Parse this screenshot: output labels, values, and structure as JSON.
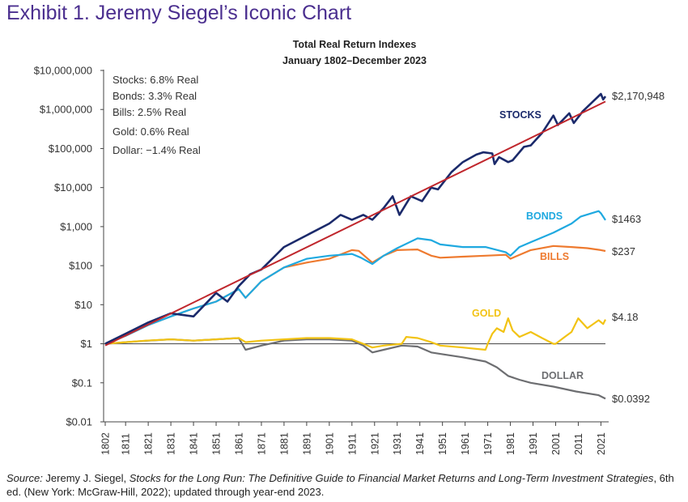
{
  "exhibit_title": "Exhibit 1. Jeremy Siegel’s Iconic Chart",
  "source": {
    "label": "Source:",
    "author": " Jeremy J. Siegel, ",
    "book": "Stocks for the Long Run: The Definitive Guide to Financial Market Returns and Long-Term Investment Strategies",
    "rest": ", 6th ed. (New York: McGraw-Hill, 2022); updated through year-end 2023."
  },
  "colors": {
    "stocks": "#1b2a6b",
    "bonds": "#1fa9e0",
    "bills": "#ee7a2f",
    "gold": "#f2c314",
    "dollar": "#6d6e71",
    "trend": "#c0272d",
    "title": "#4b2f8f"
  },
  "chart_data": {
    "type": "line",
    "title": "Total Real Return Indexes",
    "subtitle": "January 1802–December 2023",
    "y_scale": "log",
    "ylim": [
      0.01,
      10000000
    ],
    "xlim": [
      1802,
      2023
    ],
    "grid": false,
    "y_ticks": [
      "$10,000,000",
      "$1,000,000",
      "$100,000",
      "$10,000",
      "$1,000",
      "$100",
      "$10",
      "$1",
      "$0.1",
      "$0.01"
    ],
    "x_ticks": [
      "1802",
      "1811",
      "1821",
      "1831",
      "1841",
      "1851",
      "1861",
      "1871",
      "1881",
      "1891",
      "1901",
      "1911",
      "1921",
      "1931",
      "1941",
      "1951",
      "1961",
      "1971",
      "1981",
      "1991",
      "2001",
      "2011",
      "2021"
    ],
    "stats_box": [
      "Stocks: 6.8% Real",
      "Bonds: 3.3% Real",
      "Bills: 2.5% Real",
      "Gold: 0.6% Real",
      "Dollar: −1.4% Real"
    ],
    "reference_line": 1,
    "series": [
      {
        "name": "STOCKS",
        "key": "stocks",
        "end_label": "$2,170,948",
        "x": [
          1802,
          1811,
          1821,
          1831,
          1841,
          1851,
          1856,
          1861,
          1866,
          1871,
          1881,
          1891,
          1901,
          1906,
          1911,
          1916,
          1920,
          1925,
          1929,
          1932,
          1937,
          1942,
          1946,
          1949,
          1955,
          1960,
          1966,
          1969,
          1973,
          1974,
          1976,
          1980,
          1982,
          1987,
          1990,
          1995,
          2000,
          2002,
          2007,
          2009,
          2013,
          2021,
          2022,
          2023
        ],
        "y": [
          1,
          1.8,
          3.5,
          6,
          5,
          20,
          12,
          30,
          60,
          80,
          300,
          600,
          1200,
          2000,
          1500,
          2000,
          1500,
          3000,
          6000,
          2000,
          6000,
          4500,
          10000,
          9000,
          25000,
          45000,
          70000,
          80000,
          75000,
          40000,
          60000,
          45000,
          50000,
          110000,
          120000,
          250000,
          700000,
          400000,
          800000,
          450000,
          900000,
          2500000,
          1800000,
          2170948
        ]
      },
      {
        "name": "BONDS",
        "key": "bonds",
        "end_label": "$1463",
        "x": [
          1802,
          1811,
          1821,
          1831,
          1841,
          1851,
          1861,
          1864,
          1871,
          1881,
          1891,
          1901,
          1911,
          1915,
          1920,
          1925,
          1931,
          1940,
          1946,
          1950,
          1960,
          1970,
          1979,
          1981,
          1985,
          1990,
          2000,
          2008,
          2012,
          2020,
          2021,
          2023
        ],
        "y": [
          1,
          1.6,
          3,
          5,
          8,
          12,
          25,
          15,
          40,
          90,
          150,
          180,
          200,
          160,
          110,
          180,
          280,
          500,
          450,
          350,
          300,
          300,
          220,
          180,
          300,
          400,
          700,
          1200,
          1800,
          2500,
          2200,
          1463
        ]
      },
      {
        "name": "BILLS",
        "key": "bills",
        "end_label": "$237",
        "x": [
          1802,
          1811,
          1821,
          1831,
          1841,
          1851,
          1861,
          1864,
          1871,
          1881,
          1891,
          1901,
          1911,
          1914,
          1918,
          1920,
          1925,
          1931,
          1940,
          1946,
          1950,
          1960,
          1970,
          1979,
          1981,
          1990,
          2000,
          2008,
          2015,
          2021,
          2023
        ],
        "y": [
          1,
          1.6,
          3,
          5,
          8,
          12,
          25,
          15,
          40,
          90,
          120,
          150,
          250,
          240,
          150,
          120,
          180,
          250,
          260,
          180,
          160,
          170,
          180,
          190,
          150,
          250,
          320,
          300,
          280,
          250,
          237
        ]
      },
      {
        "name": "GOLD",
        "key": "gold",
        "end_label": "$4.18",
        "x": [
          1802,
          1811,
          1820,
          1831,
          1841,
          1851,
          1861,
          1864,
          1871,
          1881,
          1891,
          1901,
          1911,
          1916,
          1920,
          1925,
          1933,
          1935,
          1940,
          1946,
          1950,
          1960,
          1970,
          1971,
          1973,
          1975,
          1978,
          1980,
          1982,
          1985,
          1990,
          1995,
          2000,
          2001,
          2005,
          2008,
          2011,
          2015,
          2020,
          2022,
          2023
        ],
        "y": [
          1,
          1.1,
          1.2,
          1.3,
          1.2,
          1.3,
          1.4,
          1.1,
          1.2,
          1.3,
          1.4,
          1.4,
          1.3,
          1.0,
          0.8,
          0.9,
          1.0,
          1.5,
          1.4,
          1.1,
          0.9,
          0.8,
          0.7,
          1.0,
          1.8,
          2.5,
          2.0,
          4.5,
          2.2,
          1.5,
          2.0,
          1.4,
          1.0,
          1.0,
          1.5,
          2.0,
          4.5,
          2.5,
          4.0,
          3.2,
          4.18
        ]
      },
      {
        "name": "DOLLAR",
        "key": "dollar",
        "end_label": "$0.0392",
        "x": [
          1802,
          1811,
          1821,
          1831,
          1841,
          1851,
          1861,
          1864,
          1871,
          1881,
          1891,
          1901,
          1911,
          1916,
          1920,
          1925,
          1933,
          1940,
          1946,
          1950,
          1960,
          1970,
          1975,
          1980,
          1985,
          1990,
          2000,
          2010,
          2020,
          2023
        ],
        "y": [
          1,
          1.1,
          1.2,
          1.3,
          1.2,
          1.3,
          1.4,
          0.7,
          0.9,
          1.2,
          1.3,
          1.3,
          1.2,
          0.9,
          0.6,
          0.7,
          0.9,
          0.85,
          0.6,
          0.55,
          0.45,
          0.35,
          0.25,
          0.15,
          0.12,
          0.1,
          0.08,
          0.06,
          0.048,
          0.0392
        ]
      }
    ],
    "trend": {
      "x": [
        1802,
        2023
      ],
      "y": [
        0.9,
        1600000
      ]
    }
  }
}
